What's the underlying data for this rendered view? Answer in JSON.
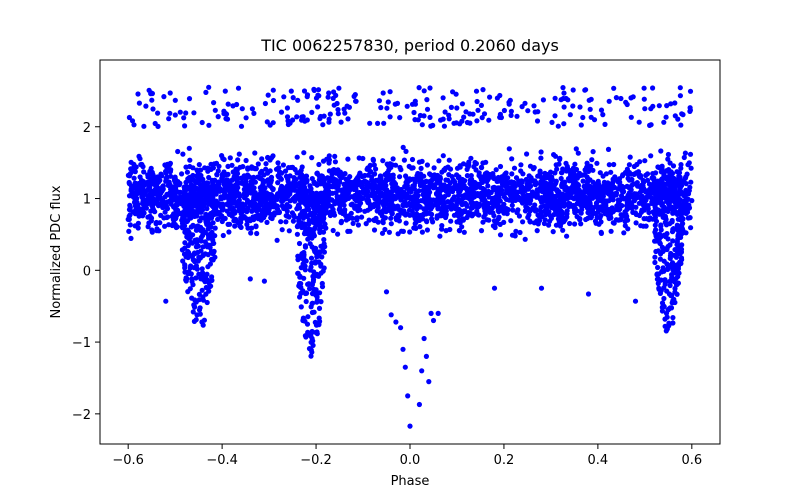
{
  "chart_data": {
    "type": "scatter",
    "title": "TIC 0062257830, period 0.2060 days",
    "xlabel": "Phase",
    "ylabel": "Normalized PDC flux",
    "xlim": [
      -0.66,
      0.66
    ],
    "ylim": [
      -2.42,
      2.93
    ],
    "xticks": [
      -0.6,
      -0.4,
      -0.2,
      0.0,
      0.2,
      0.4,
      0.6
    ],
    "xtick_labels": [
      "−0.6",
      "−0.4",
      "−0.2",
      "0.0",
      "0.2",
      "0.4",
      "0.6"
    ],
    "yticks": [
      -2,
      -1,
      0,
      1,
      2
    ],
    "ytick_labels": [
      "−2",
      "−1",
      "0",
      "1",
      "2"
    ],
    "grid": false,
    "marker_color": "#0000ff",
    "series": [
      {
        "name": "PDC flux",
        "baseline": {
          "phase_range": [
            -0.6,
            0.6
          ],
          "flux_center": 1.05,
          "flux_spread": [
            0.15,
            2.45
          ]
        },
        "dips": [
          {
            "phase_center": -0.45,
            "phase_width": 0.07,
            "flux_min": -0.92
          },
          {
            "phase_center": -0.21,
            "phase_width": 0.06,
            "flux_min": -1.2
          },
          {
            "phase_center": 0.55,
            "phase_width": 0.06,
            "flux_min": -0.92
          }
        ],
        "outliers": [
          [
            -0.52,
            -0.43
          ],
          [
            -0.34,
            -0.12
          ],
          [
            -0.31,
            -0.15
          ],
          [
            -0.05,
            -0.3
          ],
          [
            -0.04,
            -0.62
          ],
          [
            -0.03,
            -0.72
          ],
          [
            -0.02,
            -0.8
          ],
          [
            -0.015,
            -1.1
          ],
          [
            -0.01,
            -1.35
          ],
          [
            -0.005,
            -1.75
          ],
          [
            0.0,
            -2.17
          ],
          [
            0.02,
            -1.87
          ],
          [
            0.025,
            -1.4
          ],
          [
            0.03,
            -0.95
          ],
          [
            0.035,
            -1.2
          ],
          [
            0.04,
            -1.55
          ],
          [
            0.045,
            -0.6
          ],
          [
            0.05,
            -0.7
          ],
          [
            0.06,
            -0.6
          ],
          [
            0.18,
            -0.25
          ],
          [
            0.28,
            -0.25
          ],
          [
            0.38,
            -0.33
          ],
          [
            0.48,
            -0.43
          ]
        ]
      }
    ]
  }
}
